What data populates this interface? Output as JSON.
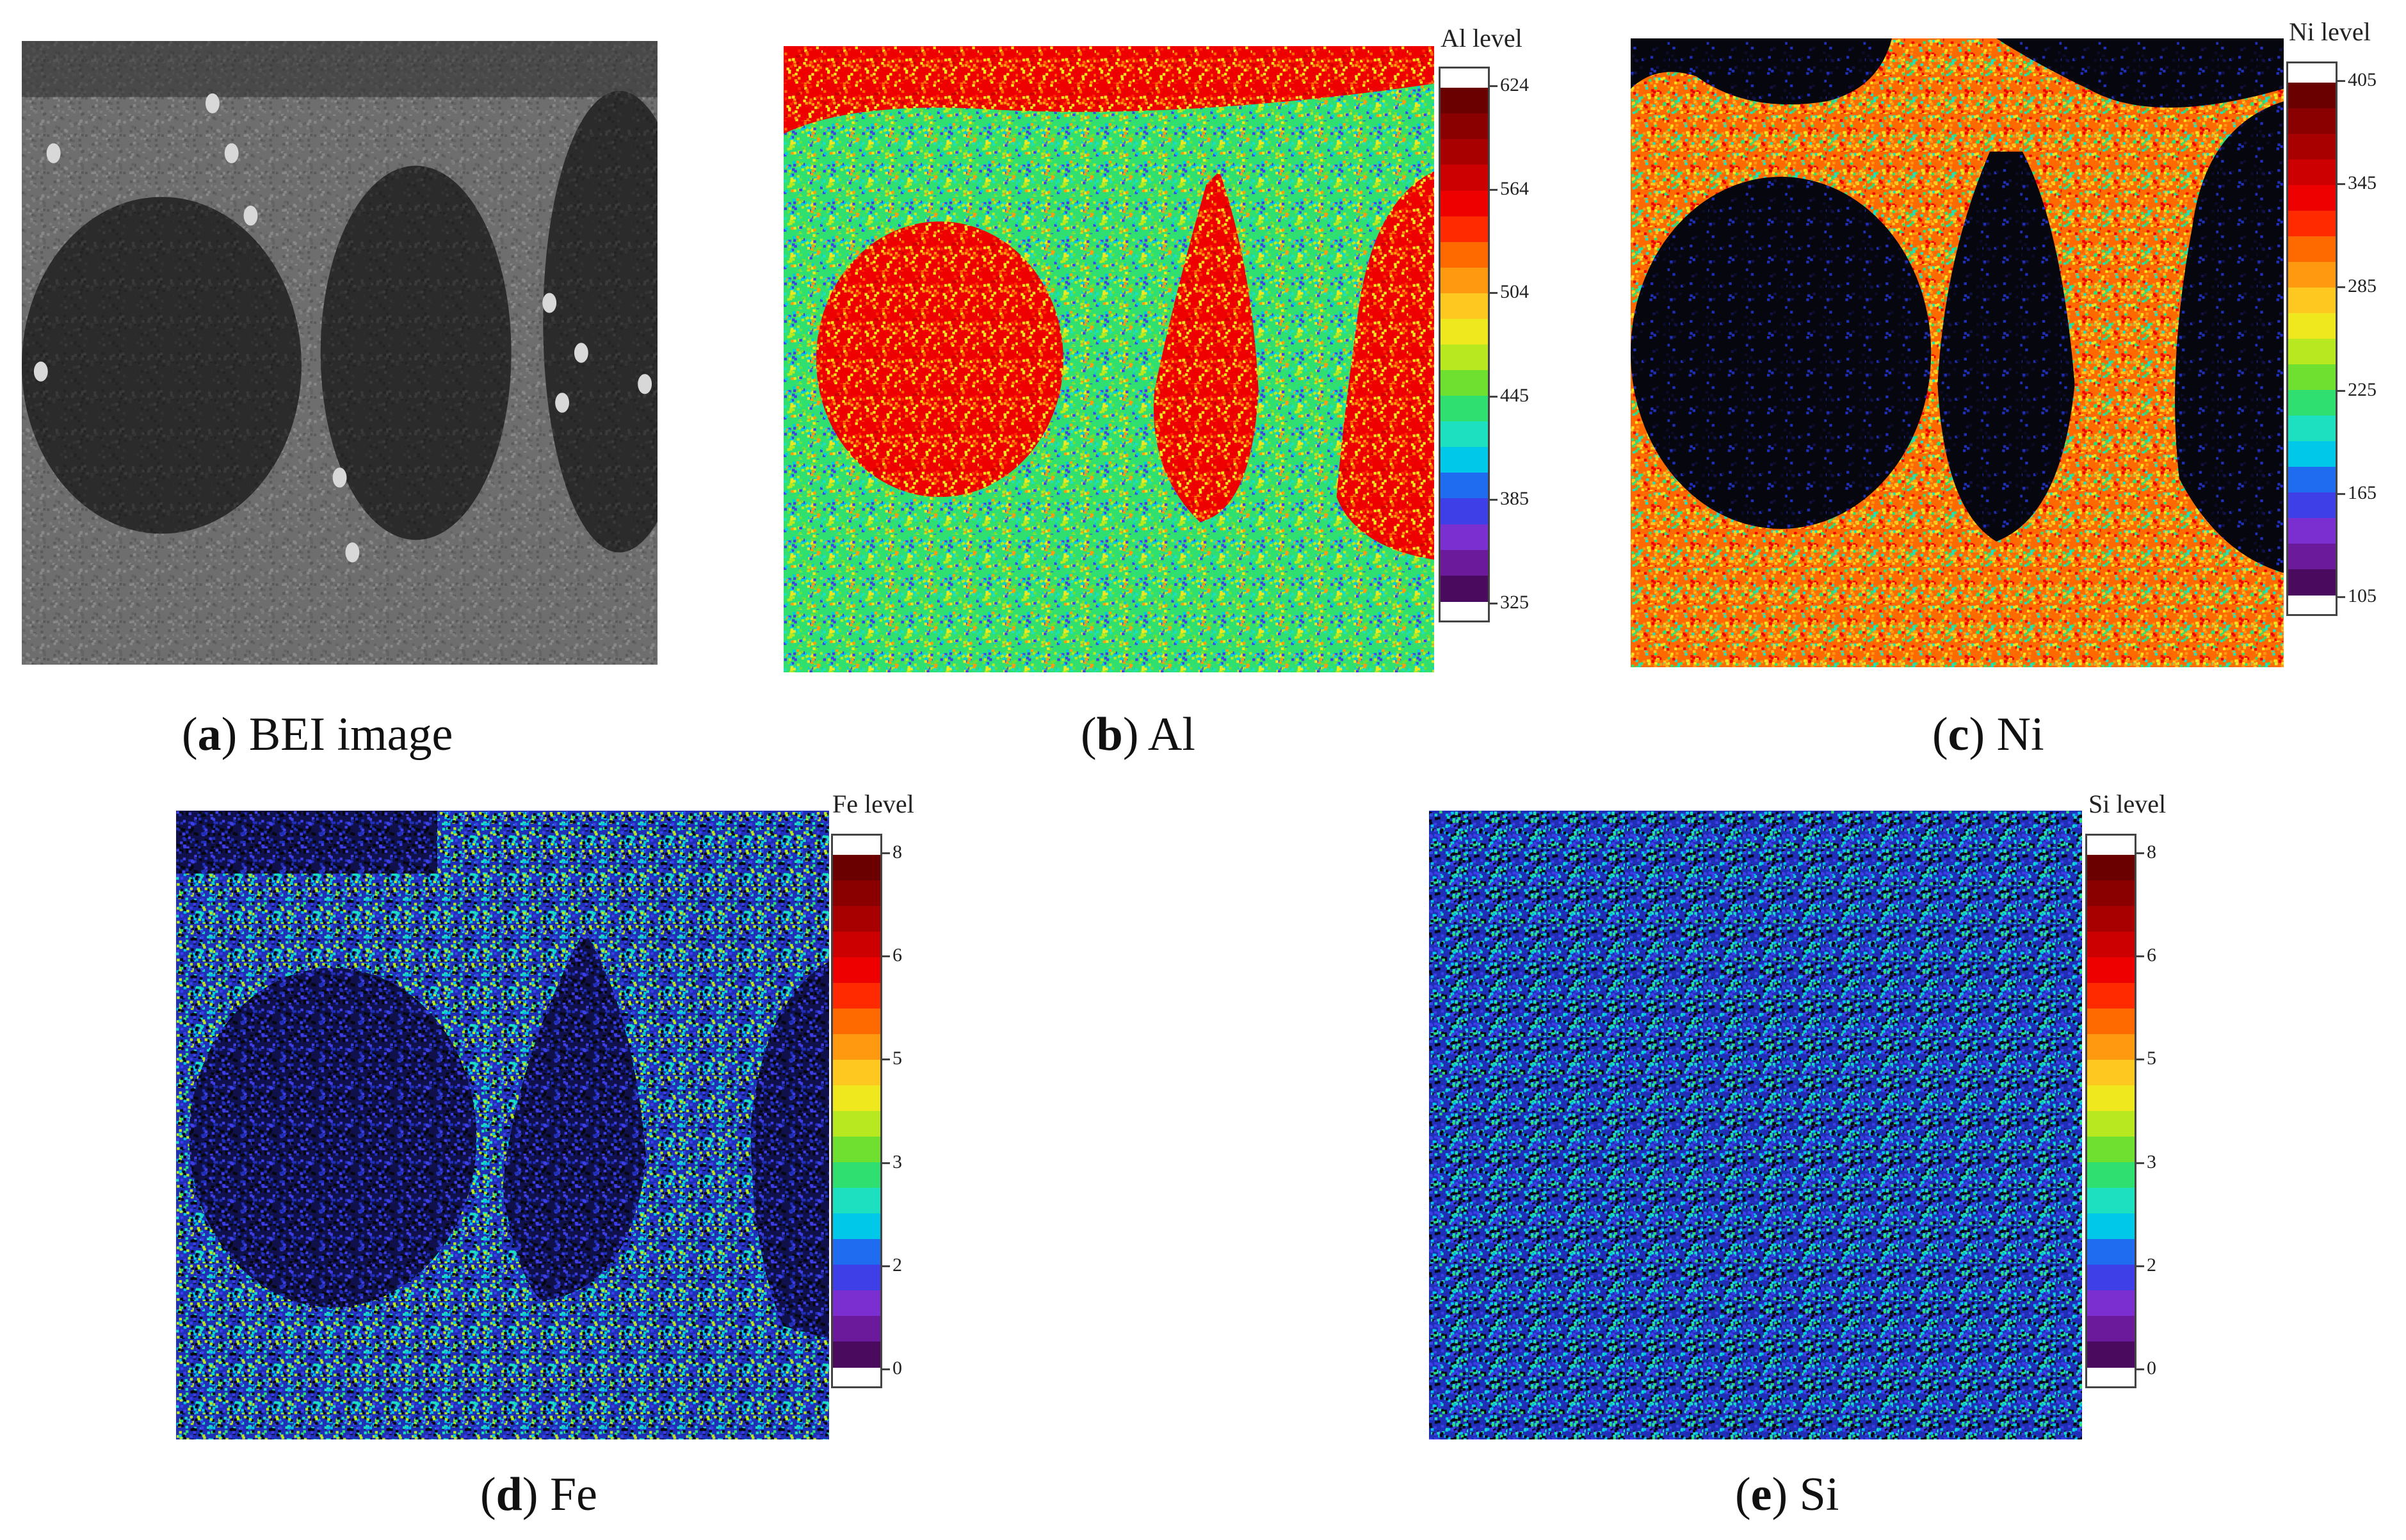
{
  "panels": [
    {
      "id": "a",
      "letter": "a",
      "caption": "BEI image",
      "kind": "gray",
      "colorbar": null
    },
    {
      "id": "b",
      "letter": "b",
      "caption": "Al",
      "kind": "al",
      "colorbar": {
        "title": "Al level",
        "ticks": [
          "624",
          "564",
          "504",
          "445",
          "385",
          "325"
        ]
      }
    },
    {
      "id": "c",
      "letter": "c",
      "caption": "Ni",
      "kind": "ni",
      "colorbar": {
        "title": "Ni level",
        "ticks": [
          "405",
          "345",
          "285",
          "225",
          "165",
          "105"
        ]
      }
    },
    {
      "id": "d",
      "letter": "d",
      "caption": "Fe",
      "kind": "fe",
      "colorbar": {
        "title": "Fe level",
        "ticks": [
          "8",
          "6",
          "5",
          "3",
          "2",
          "0"
        ]
      }
    },
    {
      "id": "e",
      "letter": "e",
      "caption": "Si",
      "kind": "si",
      "colorbar": {
        "title": "Si level",
        "ticks": [
          "8",
          "6",
          "5",
          "3",
          "2",
          "0"
        ]
      }
    }
  ],
  "colors": {
    "scale": [
      "#4a0a5e",
      "#6a1a9a",
      "#7b2fd0",
      "#3f3fe8",
      "#1f6cf0",
      "#00c8e8",
      "#1de0c0",
      "#2fe070",
      "#6fe030",
      "#b8e820",
      "#f0e81e",
      "#ffc820",
      "#ff9a10",
      "#ff6a00",
      "#ff2a00",
      "#ee0000",
      "#cc0000",
      "#a80000",
      "#8a0000",
      "#6a0000"
    ],
    "black": "#06060e",
    "gray_dark": "#2b2b2b",
    "gray_matrix": "#6e6e6e"
  }
}
